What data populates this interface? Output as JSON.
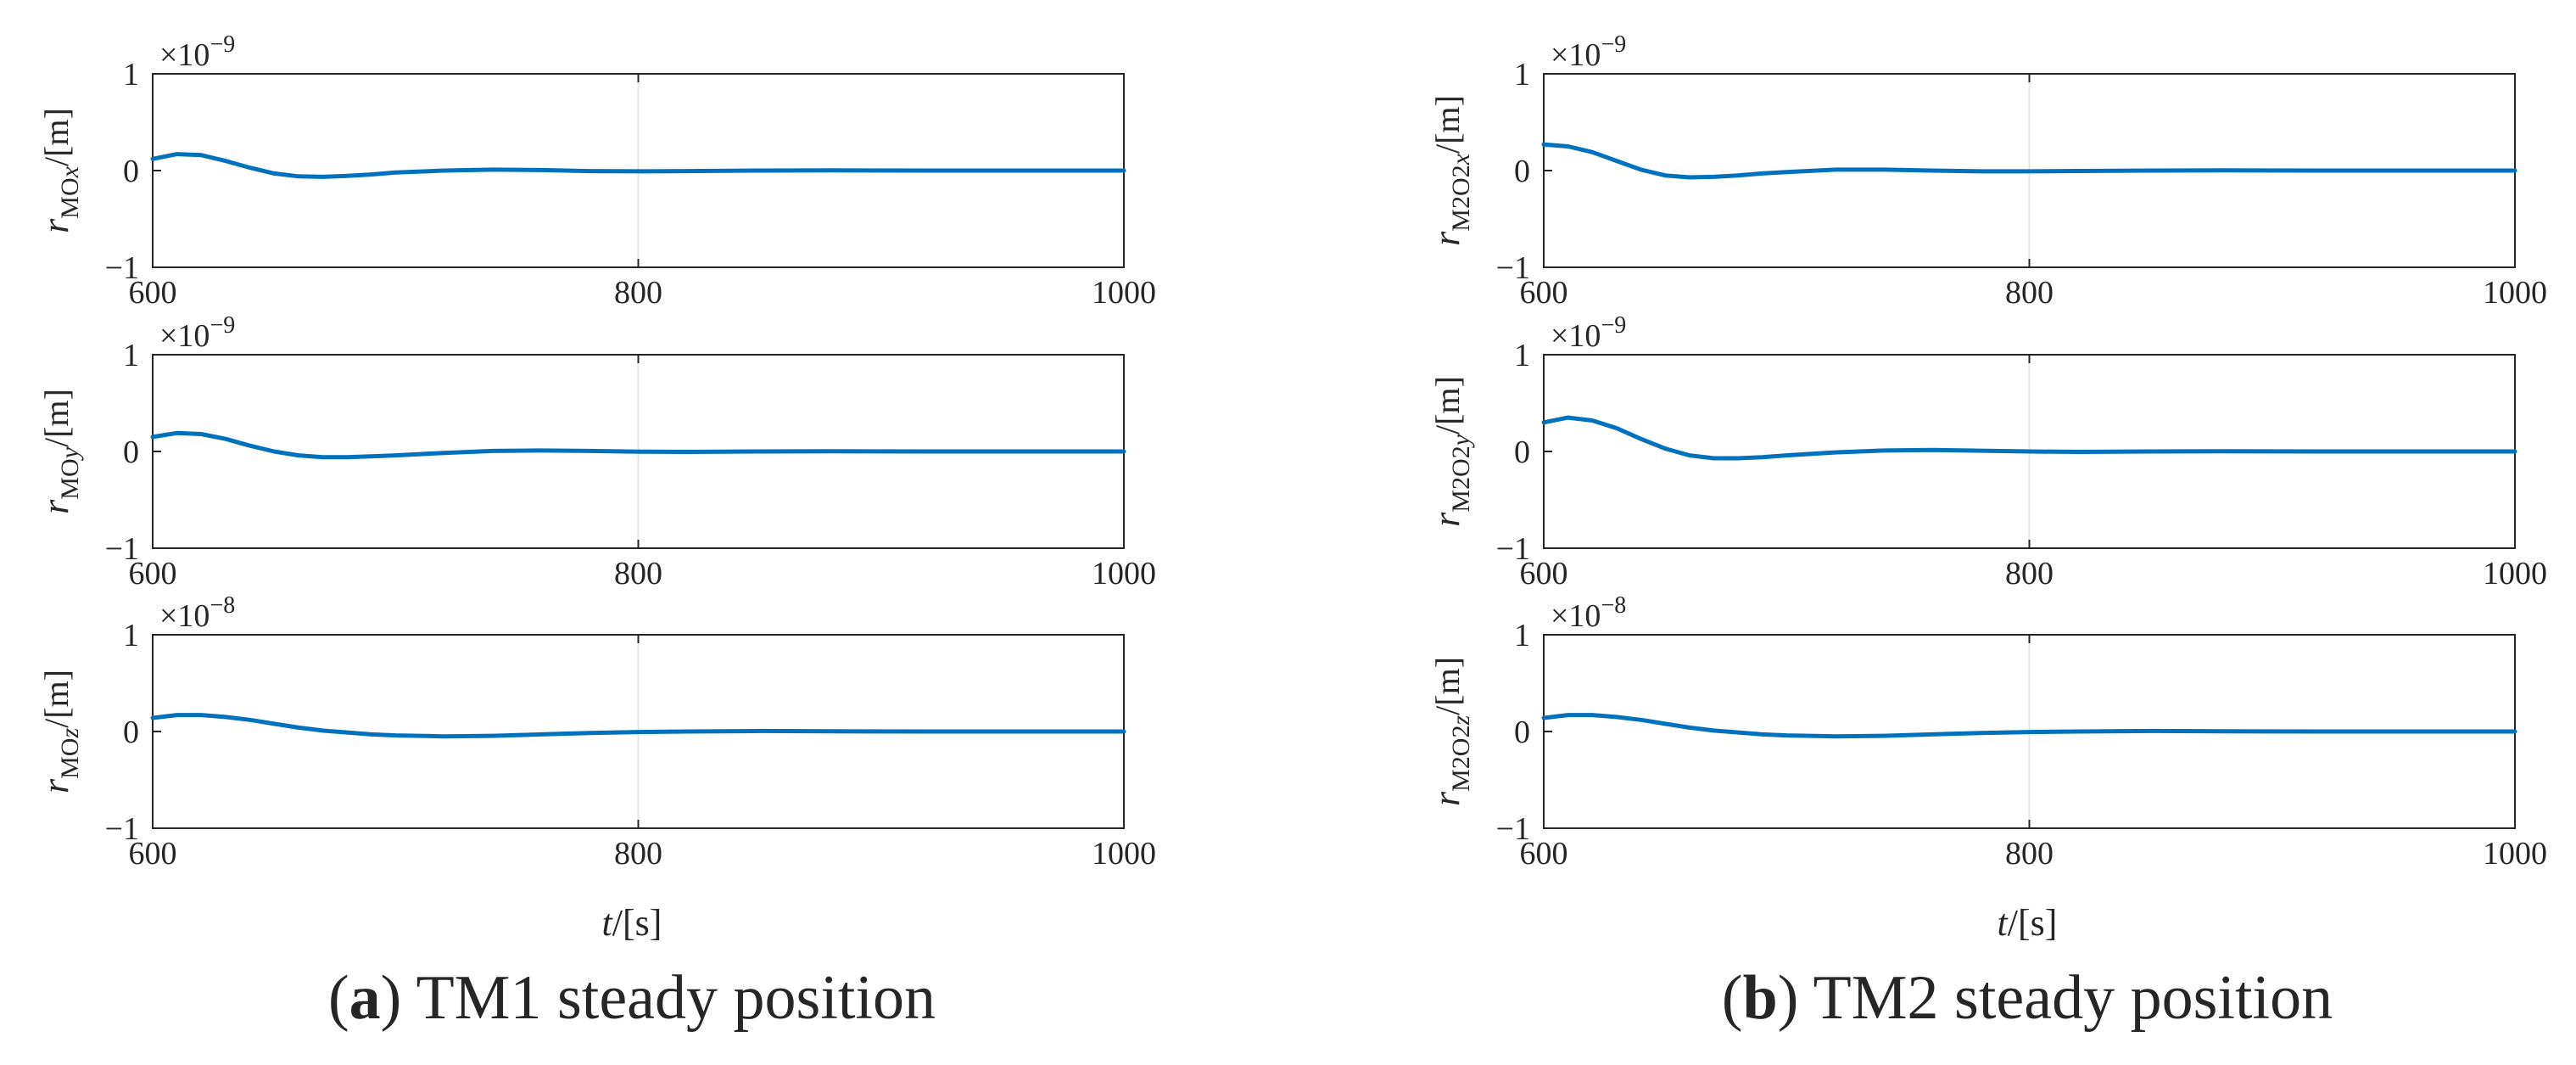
{
  "captions": [
    {
      "letter": "a",
      "text": " TM1 steady position"
    },
    {
      "letter": "b",
      "text": " TM2 steady position"
    }
  ],
  "xlabel": {
    "var": "t",
    "unit": "/[s]"
  },
  "colors": {
    "line": "#0072BD",
    "axes": "#262626",
    "grid": "#e6e6e6"
  },
  "chart_data": [
    {
      "type": "line",
      "panel": "a",
      "row": 1,
      "ylabel": {
        "var": "r",
        "sub": "MO",
        "comp": "x",
        "unit": "/[m]"
      },
      "exponent": {
        "prefix": "×10",
        "power": "−9"
      },
      "x": [
        600,
        610,
        620,
        630,
        640,
        650,
        660,
        670,
        680,
        690,
        700,
        720,
        740,
        760,
        780,
        800,
        820,
        850,
        880,
        920,
        960,
        1000
      ],
      "y": [
        0.12,
        0.17,
        0.16,
        0.1,
        0.03,
        -0.03,
        -0.06,
        -0.065,
        -0.055,
        -0.04,
        -0.02,
        0.0,
        0.01,
        0.005,
        -0.005,
        -0.008,
        -0.005,
        0,
        0.002,
        0,
        0,
        0
      ],
      "xlim": [
        600,
        1000
      ],
      "ylim": [
        -1,
        1
      ],
      "xticks": [
        600,
        800,
        1000
      ],
      "yticks": [
        -1,
        0,
        1
      ],
      "xtick_labels": [
        "600",
        "800",
        "1000"
      ],
      "ytick_labels": [
        "−1",
        "0",
        "1"
      ],
      "grid": "x only"
    },
    {
      "type": "line",
      "panel": "a",
      "row": 2,
      "ylabel": {
        "var": "r",
        "sub": "MO",
        "comp": "y",
        "unit": "/[m]"
      },
      "exponent": {
        "prefix": "×10",
        "power": "−9"
      },
      "x": [
        600,
        610,
        620,
        630,
        640,
        650,
        660,
        670,
        680,
        690,
        700,
        720,
        740,
        760,
        780,
        800,
        820,
        850,
        880,
        920,
        960,
        1000
      ],
      "y": [
        0.15,
        0.19,
        0.18,
        0.13,
        0.06,
        0.0,
        -0.04,
        -0.06,
        -0.06,
        -0.05,
        -0.04,
        -0.015,
        0.005,
        0.01,
        0.005,
        -0.002,
        -0.004,
        0,
        0.002,
        0,
        0,
        0
      ],
      "xlim": [
        600,
        1000
      ],
      "ylim": [
        -1,
        1
      ],
      "xticks": [
        600,
        800,
        1000
      ],
      "yticks": [
        -1,
        0,
        1
      ],
      "xtick_labels": [
        "600",
        "800",
        "1000"
      ],
      "ytick_labels": [
        "−1",
        "0",
        "1"
      ],
      "grid": "x only"
    },
    {
      "type": "line",
      "panel": "a",
      "row": 3,
      "ylabel": {
        "var": "r",
        "sub": "MO",
        "comp": "z",
        "unit": "/[m]"
      },
      "exponent": {
        "prefix": "×10",
        "power": "−8"
      },
      "x": [
        600,
        610,
        620,
        630,
        640,
        650,
        660,
        670,
        680,
        690,
        700,
        720,
        740,
        760,
        780,
        800,
        820,
        850,
        880,
        920,
        960,
        1000
      ],
      "y": [
        0.14,
        0.17,
        0.17,
        0.15,
        0.12,
        0.08,
        0.04,
        0.01,
        -0.01,
        -0.03,
        -0.04,
        -0.05,
        -0.045,
        -0.03,
        -0.015,
        -0.005,
        0.0,
        0.005,
        0.002,
        0,
        0,
        0
      ],
      "xlim": [
        600,
        1000
      ],
      "ylim": [
        -1,
        1
      ],
      "xticks": [
        600,
        800,
        1000
      ],
      "yticks": [
        -1,
        0,
        1
      ],
      "xtick_labels": [
        "600",
        "800",
        "1000"
      ],
      "ytick_labels": [
        "−1",
        "0",
        "1"
      ],
      "grid": "x only"
    },
    {
      "type": "line",
      "panel": "b",
      "row": 1,
      "ylabel": {
        "var": "r",
        "sub": "M2O2",
        "comp": "x",
        "unit": "/[m]"
      },
      "exponent": {
        "prefix": "×10",
        "power": "−9"
      },
      "x": [
        600,
        610,
        620,
        630,
        640,
        650,
        660,
        670,
        680,
        690,
        700,
        720,
        740,
        760,
        780,
        800,
        820,
        850,
        880,
        920,
        960,
        1000
      ],
      "y": [
        0.27,
        0.25,
        0.19,
        0.1,
        0.01,
        -0.05,
        -0.07,
        -0.065,
        -0.05,
        -0.03,
        -0.015,
        0.01,
        0.01,
        0.0,
        -0.008,
        -0.008,
        -0.004,
        0.0,
        0.002,
        0,
        0,
        0
      ],
      "xlim": [
        600,
        1000
      ],
      "ylim": [
        -1,
        1
      ],
      "xticks": [
        600,
        800,
        1000
      ],
      "yticks": [
        -1,
        0,
        1
      ],
      "xtick_labels": [
        "600",
        "800",
        "1000"
      ],
      "ytick_labels": [
        "−1",
        "0",
        "1"
      ],
      "grid": "x only"
    },
    {
      "type": "line",
      "panel": "b",
      "row": 2,
      "ylabel": {
        "var": "r",
        "sub": "M2O2",
        "comp": "y",
        "unit": "/[m]"
      },
      "exponent": {
        "prefix": "×10",
        "power": "−9"
      },
      "x": [
        600,
        610,
        620,
        630,
        640,
        650,
        660,
        670,
        680,
        690,
        700,
        720,
        740,
        760,
        780,
        800,
        820,
        850,
        880,
        920,
        960,
        1000
      ],
      "y": [
        0.3,
        0.35,
        0.32,
        0.24,
        0.13,
        0.03,
        -0.04,
        -0.07,
        -0.07,
        -0.06,
        -0.04,
        -0.01,
        0.01,
        0.015,
        0.008,
        0.0,
        -0.004,
        0.0,
        0.002,
        0,
        0,
        0
      ],
      "xlim": [
        600,
        1000
      ],
      "ylim": [
        -1,
        1
      ],
      "xticks": [
        600,
        800,
        1000
      ],
      "yticks": [
        -1,
        0,
        1
      ],
      "xtick_labels": [
        "600",
        "800",
        "1000"
      ],
      "ytick_labels": [
        "−1",
        "0",
        "1"
      ],
      "grid": "x only"
    },
    {
      "type": "line",
      "panel": "b",
      "row": 3,
      "ylabel": {
        "var": "r",
        "sub": "M2O2",
        "comp": "z",
        "unit": "/[m]"
      },
      "exponent": {
        "prefix": "×10",
        "power": "−8"
      },
      "x": [
        600,
        610,
        620,
        630,
        640,
        650,
        660,
        670,
        680,
        690,
        700,
        720,
        740,
        760,
        780,
        800,
        820,
        850,
        880,
        920,
        960,
        1000
      ],
      "y": [
        0.14,
        0.17,
        0.17,
        0.15,
        0.12,
        0.08,
        0.04,
        0.01,
        -0.01,
        -0.03,
        -0.04,
        -0.05,
        -0.045,
        -0.03,
        -0.015,
        -0.005,
        0.0,
        0.005,
        0.002,
        0,
        0,
        0
      ],
      "xlim": [
        600,
        1000
      ],
      "ylim": [
        -1,
        1
      ],
      "xticks": [
        600,
        800,
        1000
      ],
      "yticks": [
        -1,
        0,
        1
      ],
      "xtick_labels": [
        "600",
        "800",
        "1000"
      ],
      "ytick_labels": [
        "−1",
        "0",
        "1"
      ],
      "grid": "x only"
    }
  ]
}
